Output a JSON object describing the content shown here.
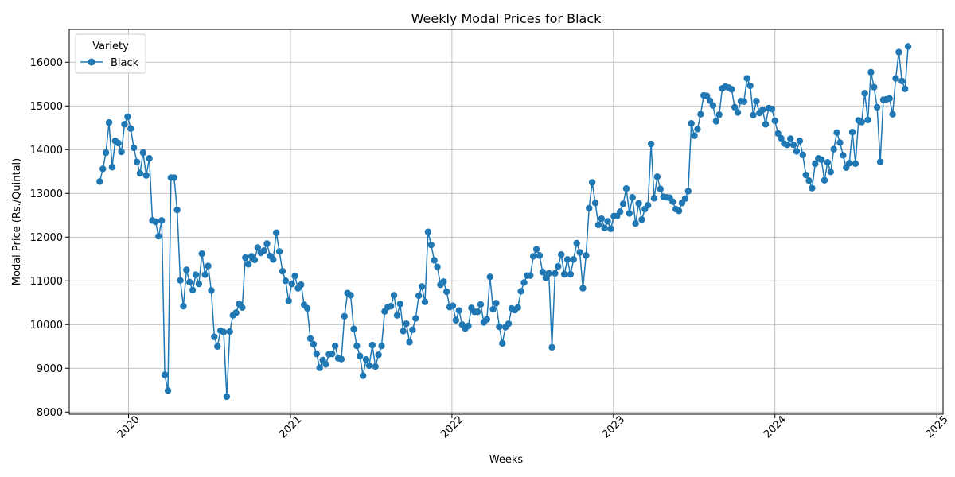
{
  "chart_data": {
    "type": "line",
    "title": "Weekly Modal Prices for Black",
    "xlabel": "Weeks",
    "ylabel": "Modal Price (Rs./Quintal)",
    "ylim": [
      7950,
      16750
    ],
    "xlim": [
      "2019-08-20",
      "2025-01-15"
    ],
    "grid": true,
    "color": "#1f77b4",
    "legend": {
      "title": "Variety",
      "placement": "top-left",
      "entries": [
        "Black"
      ]
    },
    "x_ticks": [
      {
        "date": "2020-01-01",
        "label": "2020"
      },
      {
        "date": "2021-01-01",
        "label": "2021"
      },
      {
        "date": "2022-01-01",
        "label": "2022"
      },
      {
        "date": "2023-01-01",
        "label": "2023"
      },
      {
        "date": "2024-01-01",
        "label": "2024"
      },
      {
        "date": "2025-01-01",
        "label": "2025"
      }
    ],
    "y_ticks": [
      8000,
      9000,
      10000,
      11000,
      12000,
      13000,
      14000,
      15000,
      16000
    ],
    "series": [
      {
        "name": "Black",
        "x": [
          "2019-10-28",
          "2019-11-04",
          "2019-11-11",
          "2019-11-18",
          "2019-11-25",
          "2019-12-02",
          "2019-12-09",
          "2019-12-16",
          "2019-12-23",
          "2019-12-30",
          "2020-01-06",
          "2020-01-13",
          "2020-01-20",
          "2020-01-27",
          "2020-02-03",
          "2020-02-10",
          "2020-02-17",
          "2020-02-24",
          "2020-03-02",
          "2020-03-09",
          "2020-03-16",
          "2020-03-23",
          "2020-03-30",
          "2020-04-06",
          "2020-04-13",
          "2020-04-20",
          "2020-04-27",
          "2020-05-04",
          "2020-05-11",
          "2020-05-18",
          "2020-05-25",
          "2020-06-01",
          "2020-06-08",
          "2020-06-15",
          "2020-06-22",
          "2020-06-29",
          "2020-07-06",
          "2020-07-13",
          "2020-07-20",
          "2020-07-27",
          "2020-08-03",
          "2020-08-10",
          "2020-08-17",
          "2020-08-24",
          "2020-08-31",
          "2020-09-07",
          "2020-09-14",
          "2020-09-21",
          "2020-09-28",
          "2020-10-05",
          "2020-10-12",
          "2020-10-19",
          "2020-10-26",
          "2020-11-02",
          "2020-11-09",
          "2020-11-16",
          "2020-11-23",
          "2020-11-30",
          "2020-12-07",
          "2020-12-14",
          "2020-12-21",
          "2020-12-28",
          "2021-01-04",
          "2021-01-11",
          "2021-01-18",
          "2021-01-25",
          "2021-02-01",
          "2021-02-08",
          "2021-02-15",
          "2021-02-22",
          "2021-03-01",
          "2021-03-08",
          "2021-03-15",
          "2021-03-22",
          "2021-03-29",
          "2021-04-05",
          "2021-04-12",
          "2021-04-19",
          "2021-04-26",
          "2021-05-03",
          "2021-05-10",
          "2021-05-17",
          "2021-05-24",
          "2021-05-31",
          "2021-06-07",
          "2021-06-14",
          "2021-06-21",
          "2021-06-28",
          "2021-07-05",
          "2021-07-12",
          "2021-07-19",
          "2021-07-26",
          "2021-08-02",
          "2021-08-09",
          "2021-08-16",
          "2021-08-23",
          "2021-08-30",
          "2021-09-06",
          "2021-09-13",
          "2021-09-20",
          "2021-09-27",
          "2021-10-04",
          "2021-10-11",
          "2021-10-18",
          "2021-10-25",
          "2021-11-01",
          "2021-11-08",
          "2021-11-15",
          "2021-11-22",
          "2021-11-29",
          "2021-12-06",
          "2021-12-13",
          "2021-12-20",
          "2021-12-27",
          "2022-01-03",
          "2022-01-10",
          "2022-01-17",
          "2022-01-24",
          "2022-01-31",
          "2022-02-07",
          "2022-02-14",
          "2022-02-21",
          "2022-02-28",
          "2022-03-07",
          "2022-03-14",
          "2022-03-21",
          "2022-03-28",
          "2022-04-04",
          "2022-04-11",
          "2022-04-18",
          "2022-04-25",
          "2022-05-02",
          "2022-05-09",
          "2022-05-16",
          "2022-05-23",
          "2022-05-30",
          "2022-06-06",
          "2022-06-13",
          "2022-06-20",
          "2022-06-27",
          "2022-07-04",
          "2022-07-11",
          "2022-07-18",
          "2022-07-25",
          "2022-08-01",
          "2022-08-08",
          "2022-08-15",
          "2022-08-22",
          "2022-08-29",
          "2022-09-05",
          "2022-09-12",
          "2022-09-19",
          "2022-09-26",
          "2022-10-03",
          "2022-10-10",
          "2022-10-17",
          "2022-10-24",
          "2022-10-31",
          "2022-11-07",
          "2022-11-14",
          "2022-11-21",
          "2022-11-28",
          "2022-12-05",
          "2022-12-12",
          "2022-12-19",
          "2022-12-26",
          "2023-01-02",
          "2023-01-09",
          "2023-01-16",
          "2023-01-23",
          "2023-01-30",
          "2023-02-06",
          "2023-02-13",
          "2023-02-20",
          "2023-02-27",
          "2023-03-06",
          "2023-03-13",
          "2023-03-20",
          "2023-03-27",
          "2023-04-03",
          "2023-04-10",
          "2023-04-17",
          "2023-04-24",
          "2023-05-01",
          "2023-05-08",
          "2023-05-15",
          "2023-05-22",
          "2023-05-29",
          "2023-06-05",
          "2023-06-12",
          "2023-06-19",
          "2023-06-26",
          "2023-07-03",
          "2023-07-10",
          "2023-07-17",
          "2023-07-24",
          "2023-07-31",
          "2023-08-07",
          "2023-08-14",
          "2023-08-21",
          "2023-08-28",
          "2023-09-04",
          "2023-09-11",
          "2023-09-18",
          "2023-09-25",
          "2023-10-02",
          "2023-10-09",
          "2023-10-16",
          "2023-10-23",
          "2023-10-30",
          "2023-11-06",
          "2023-11-13",
          "2023-11-20",
          "2023-11-27",
          "2023-12-04",
          "2023-12-11",
          "2023-12-18",
          "2023-12-25",
          "2024-01-01",
          "2024-01-08",
          "2024-01-15",
          "2024-01-22",
          "2024-01-29",
          "2024-02-05",
          "2024-02-12",
          "2024-02-19",
          "2024-02-26",
          "2024-03-04",
          "2024-03-11",
          "2024-03-18",
          "2024-03-25",
          "2024-04-01",
          "2024-04-08",
          "2024-04-15",
          "2024-04-22",
          "2024-04-29",
          "2024-05-06",
          "2024-05-13",
          "2024-05-20",
          "2024-05-27",
          "2024-06-03",
          "2024-06-10",
          "2024-06-17",
          "2024-06-24",
          "2024-07-01",
          "2024-07-08",
          "2024-07-15",
          "2024-07-22",
          "2024-07-29",
          "2024-08-05",
          "2024-08-12",
          "2024-08-19",
          "2024-08-26",
          "2024-09-02",
          "2024-09-09",
          "2024-09-16",
          "2024-09-23",
          "2024-09-30",
          "2024-10-07",
          "2024-10-14",
          "2024-10-21",
          "2024-10-28"
        ],
        "values": [
          13270,
          13560,
          13930,
          14620,
          13600,
          14200,
          14150,
          13950,
          14580,
          14750,
          14480,
          14040,
          13720,
          13460,
          13930,
          13410,
          13800,
          12380,
          12350,
          12020,
          12380,
          8850,
          8490,
          13360,
          13360,
          12620,
          11010,
          10420,
          11250,
          10970,
          10790,
          11140,
          10930,
          11620,
          11140,
          11340,
          10780,
          9720,
          9500,
          9860,
          9830,
          8350,
          9840,
          10210,
          10270,
          10470,
          10390,
          11530,
          11380,
          11560,
          11480,
          11760,
          11640,
          11690,
          11850,
          11570,
          11490,
          12100,
          11670,
          11220,
          11000,
          10540,
          10930,
          11110,
          10830,
          10910,
          10450,
          10370,
          9680,
          9550,
          9330,
          9010,
          9190,
          9090,
          9320,
          9330,
          9510,
          9230,
          9210,
          10190,
          10720,
          10670,
          9900,
          9510,
          9280,
          8830,
          9200,
          9060,
          9530,
          9040,
          9310,
          9510,
          10300,
          10400,
          10420,
          10670,
          10210,
          10470,
          9850,
          10020,
          9600,
          9880,
          10140,
          10660,
          10870,
          10520,
          12120,
          11820,
          11470,
          11320,
          10910,
          10980,
          10750,
          10400,
          10430,
          10100,
          10320,
          10000,
          9910,
          9970,
          10380,
          10290,
          10290,
          10460,
          10050,
          10120,
          11090,
          10350,
          10490,
          9950,
          9570,
          9940,
          10020,
          10370,
          10330,
          10390,
          10760,
          10960,
          11120,
          11120,
          11560,
          11720,
          11580,
          11200,
          11070,
          11170,
          9480,
          11170,
          11330,
          11600,
          11150,
          11490,
          11150,
          11490,
          11860,
          11650,
          10830,
          11580,
          12660,
          13250,
          12780,
          12280,
          12420,
          12210,
          12360,
          12190,
          12480,
          12480,
          12580,
          12760,
          13110,
          12540,
          12910,
          12310,
          12770,
          12400,
          12640,
          12730,
          14130,
          12890,
          13380,
          13100,
          12920,
          12910,
          12900,
          12810,
          12640,
          12600,
          12780,
          12880,
          13050,
          14600,
          14320,
          14470,
          14810,
          15240,
          15230,
          15120,
          15010,
          14650,
          14800,
          15400,
          15440,
          15420,
          15380,
          14970,
          14850,
          15110,
          15100,
          15630,
          15460,
          14790,
          15110,
          14840,
          14910,
          14580,
          14950,
          14930,
          14660,
          14370,
          14260,
          14140,
          14110,
          14250,
          14110,
          13960,
          14200,
          13880,
          13420,
          13290,
          13120,
          13680,
          13800,
          13770,
          13300,
          13710,
          13490,
          14010,
          14390,
          14160,
          13870,
          13590,
          13690,
          14400,
          13680,
          14670,
          14630,
          15290,
          14680,
          15770,
          15430,
          14970,
          13720,
          15140,
          15150,
          15170,
          14810,
          15630,
          16230,
          15570,
          15390,
          16360
        ]
      }
    ]
  }
}
